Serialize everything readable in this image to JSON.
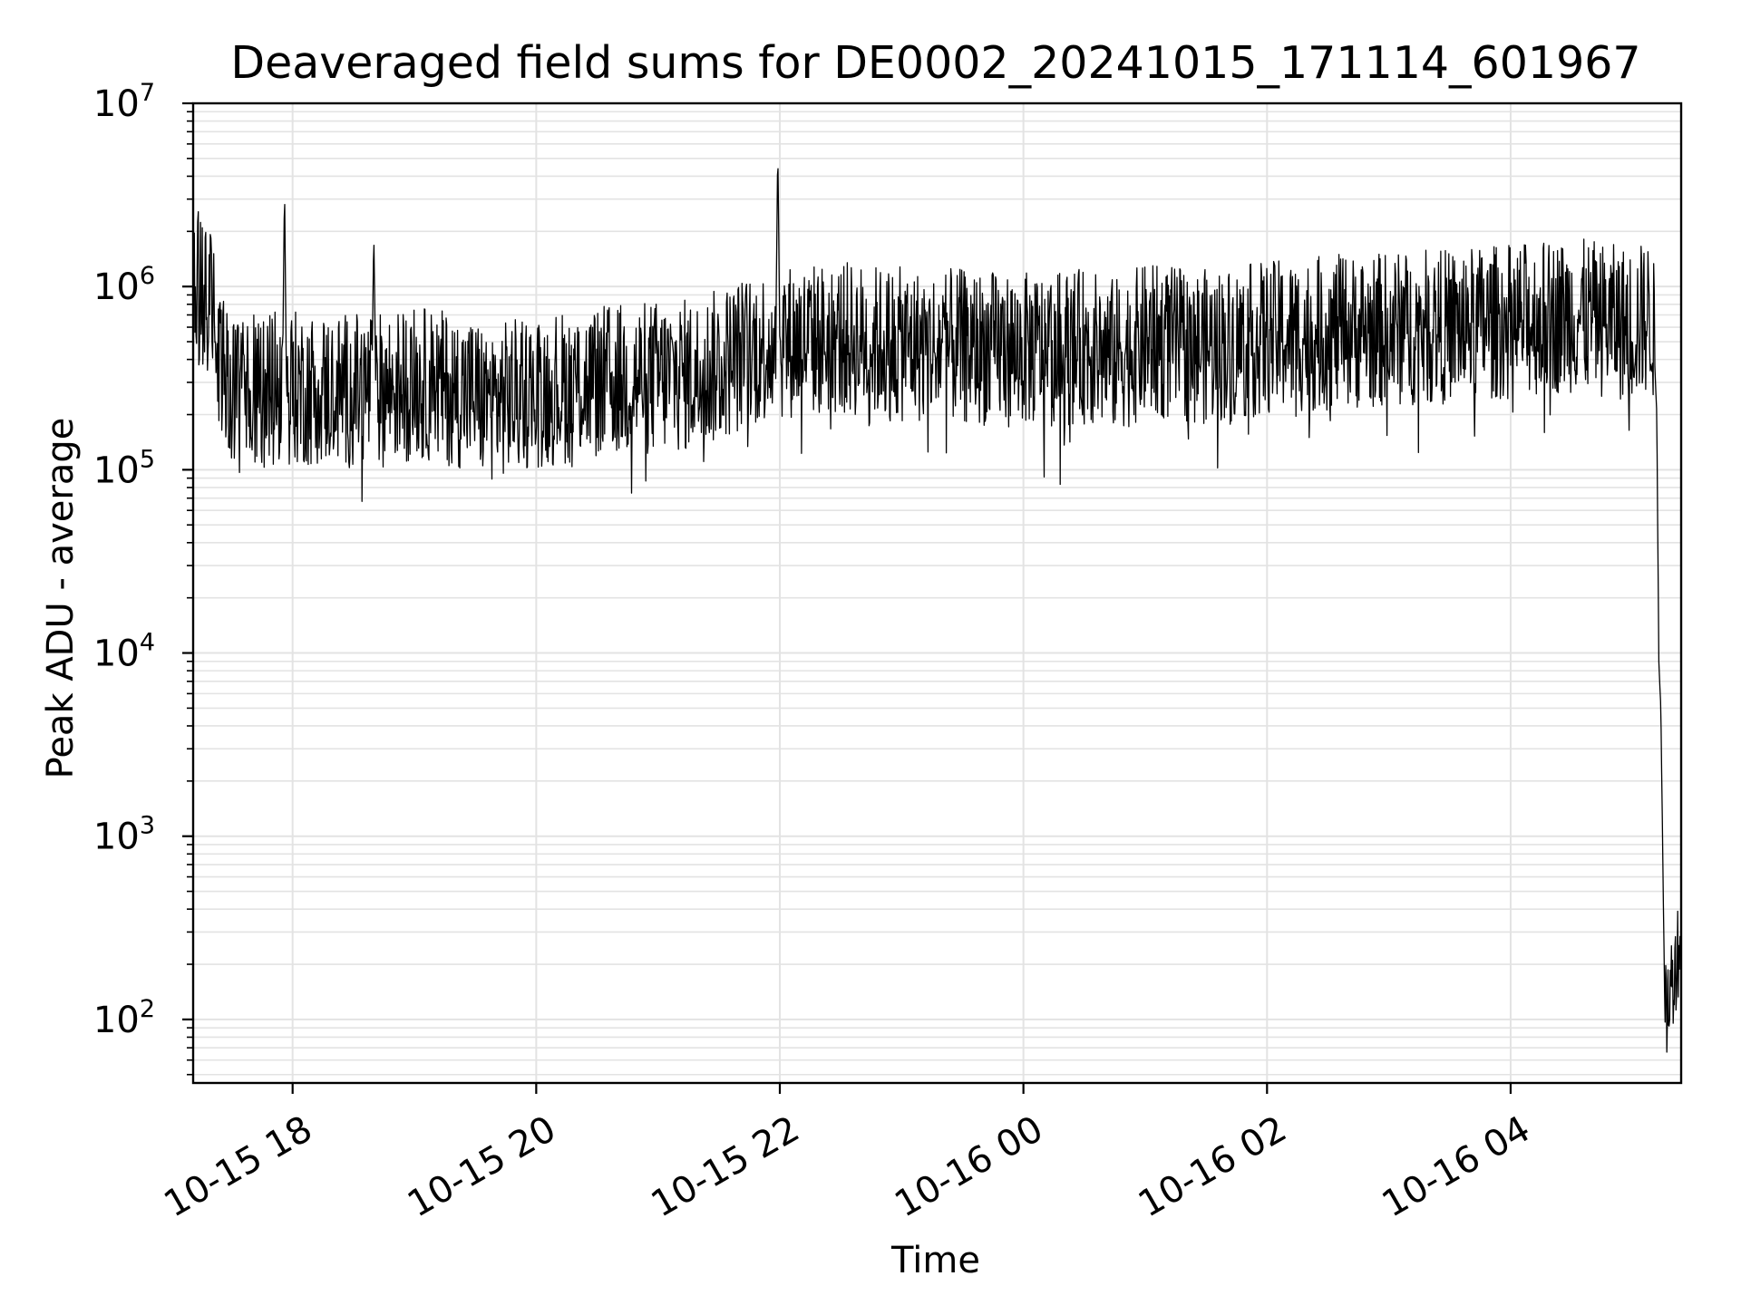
{
  "chart_data": {
    "type": "line",
    "title": "Deaveraged field sums for DE0002_20241015_171114_601967",
    "xlabel": "Time",
    "ylabel": "Peak ADU - average",
    "yscale": "log",
    "ylim": [
      45,
      10000000
    ],
    "xlim": [
      "2024-10-15 17:11",
      "2024-10-16 05:24"
    ],
    "grid": true,
    "line_color": "#000000",
    "x_ticks": [
      "10-15 18",
      "10-15 20",
      "10-15 22",
      "10-16 00",
      "10-16 02",
      "10-16 04"
    ],
    "x_tick_values": [
      "2024-10-15 18:00",
      "2024-10-15 20:00",
      "2024-10-15 22:00",
      "2024-10-16 00:00",
      "2024-10-16 02:00",
      "2024-10-16 04:00"
    ],
    "y_ticks": [
      {
        "base": "10",
        "exp": "2",
        "value": 100
      },
      {
        "base": "10",
        "exp": "3",
        "value": 1000
      },
      {
        "base": "10",
        "exp": "4",
        "value": 10000
      },
      {
        "base": "10",
        "exp": "5",
        "value": 100000
      },
      {
        "base": "10",
        "exp": "6",
        "value": 1000000
      },
      {
        "base": "10",
        "exp": "7",
        "value": 10000000
      }
    ],
    "series": [
      {
        "x": [
          "2024-10-15 17:11",
          "2024-10-15 17:20",
          "2024-10-15 17:24",
          "2024-10-15 17:35",
          "2024-10-15 17:55",
          "2024-10-15 17:56",
          "2024-10-15 17:57",
          "2024-10-15 18:30",
          "2024-10-15 18:39",
          "2024-10-15 18:40",
          "2024-10-15 18:41",
          "2024-10-15 19:00",
          "2024-10-15 19:30",
          "2024-10-15 19:35",
          "2024-10-15 20:00",
          "2024-10-15 20:30",
          "2024-10-15 21:00",
          "2024-10-15 21:20",
          "2024-10-15 21:40",
          "2024-10-15 21:58",
          "2024-10-15 21:59",
          "2024-10-15 22:00",
          "2024-10-15 22:30",
          "2024-10-15 23:00",
          "2024-10-15 23:30",
          "2024-10-16 00:00",
          "2024-10-16 00:30",
          "2024-10-16 00:45",
          "2024-10-16 01:00",
          "2024-10-16 01:30",
          "2024-10-16 02:00",
          "2024-10-16 02:30",
          "2024-10-16 03:00",
          "2024-10-16 03:30",
          "2024-10-16 04:00",
          "2024-10-16 04:30",
          "2024-10-16 05:00",
          "2024-10-16 05:10",
          "2024-10-16 05:12",
          "2024-10-16 05:13",
          "2024-10-16 05:14",
          "2024-10-16 05:16",
          "2024-10-16 05:24"
        ],
        "values": [
          1000000,
          900000,
          350000,
          260000,
          280000,
          3700000,
          280000,
          270000,
          280000,
          2000000,
          270000,
          300000,
          260000,
          230000,
          270000,
          300000,
          320000,
          330000,
          420000,
          500000,
          6000000,
          500000,
          520000,
          480000,
          470000,
          450000,
          470000,
          420000,
          500000,
          470000,
          520000,
          560000,
          580000,
          610000,
          650000,
          700000,
          620000,
          700000,
          200000,
          9000,
          5000,
          100,
          300
        ]
      }
    ]
  }
}
